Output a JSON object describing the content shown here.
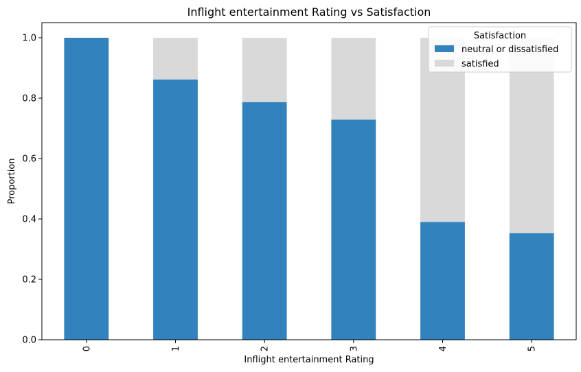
{
  "colors": {
    "neutral_or_dissatisfied": "#3182bd",
    "satisfied": "#d9d9d9"
  },
  "chart_data": {
    "type": "bar",
    "stacked": true,
    "title": "Inflight entertainment Rating vs Satisfaction",
    "xlabel": "Inflight entertainment Rating",
    "ylabel": "Proportion",
    "categories": [
      "0",
      "1",
      "2",
      "3",
      "4",
      "5"
    ],
    "series": [
      {
        "name": "neutral or dissatisfied",
        "values": [
          1.0,
          0.862,
          0.787,
          0.729,
          0.39,
          0.353
        ]
      },
      {
        "name": "satisfied",
        "values": [
          0.0,
          0.138,
          0.213,
          0.271,
          0.61,
          0.647
        ]
      }
    ],
    "ylim": [
      0,
      1.05
    ],
    "yticks": [
      "0.0",
      "0.2",
      "0.4",
      "0.6",
      "0.8",
      "1.0"
    ],
    "legend": {
      "title": "Satisfaction",
      "position": "top-right"
    },
    "grid": false
  }
}
